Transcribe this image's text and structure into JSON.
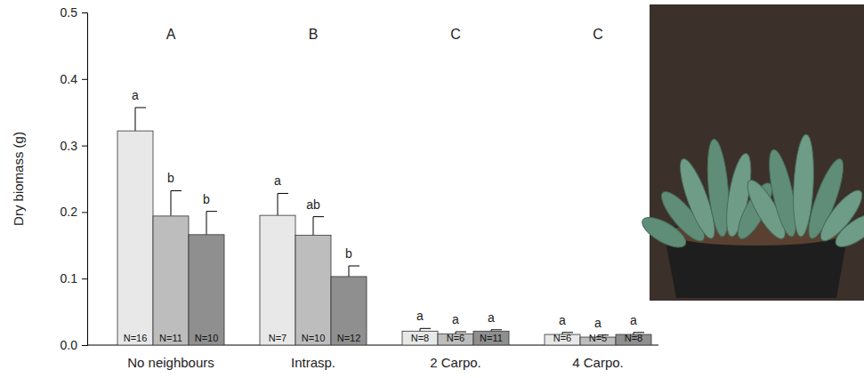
{
  "chart_data": {
    "type": "bar",
    "y_label": "Dry biomass (g)",
    "categories": [
      "No neighbours",
      "Intrasp.",
      "2 Carpo.",
      "4 Carpo."
    ],
    "group_letters": [
      "A",
      "B",
      "C",
      "C"
    ],
    "series": [
      {
        "color": "#e8e8e8",
        "values": [
          0.322,
          0.195,
          0.021,
          0.016
        ],
        "errors": [
          0.035,
          0.033,
          0.004,
          0.003
        ],
        "letters": [
          "a",
          "a",
          "a",
          "a"
        ],
        "n_labels": [
          "N=16",
          "N=7",
          "N=8",
          "N=6"
        ]
      },
      {
        "color": "#bdbdbd",
        "values": [
          0.194,
          0.165,
          0.017,
          0.012
        ],
        "errors": [
          0.038,
          0.028,
          0.003,
          0.003
        ],
        "letters": [
          "b",
          "ab",
          "a",
          "a"
        ],
        "n_labels": [
          "N=11",
          "N=10",
          "N=6",
          "N=5"
        ]
      },
      {
        "color": "#8f8f8f",
        "values": [
          0.166,
          0.103,
          0.021,
          0.016
        ],
        "errors": [
          0.035,
          0.016,
          0.002,
          0.003
        ],
        "letters": [
          "b",
          "b",
          "a",
          "a"
        ],
        "n_labels": [
          "N=10",
          "N=12",
          "N=11",
          "N=8"
        ]
      }
    ],
    "ylim": [
      0,
      0.5
    ],
    "yticks": [
      {
        "value": 0,
        "label": "0.0"
      },
      0.1,
      0.2,
      0.3,
      0.4,
      0.5
    ]
  }
}
